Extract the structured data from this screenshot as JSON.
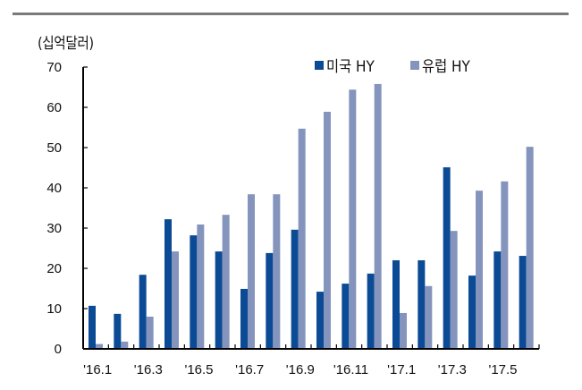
{
  "chart_data": {
    "type": "bar",
    "title": "",
    "unit_label": "(십억달러)",
    "xlabel": "",
    "ylabel": "(십억달러)",
    "ylim": [
      0,
      70
    ],
    "yticks": [
      0,
      10,
      20,
      30,
      40,
      50,
      60,
      70
    ],
    "grid": false,
    "legend_position": "top-right",
    "categories": [
      "'16.1",
      "'16.2",
      "'16.3",
      "'16.4",
      "'16.5",
      "'16.6",
      "'16.7",
      "'16.8",
      "'16.9",
      "'16.10",
      "'16.11",
      "'16.12",
      "'17.1",
      "'17.2",
      "'17.3",
      "'17.4",
      "'17.5",
      "'17.6"
    ],
    "xtick_labels": [
      "'16.1",
      "'16.3",
      "'16.5",
      "'16.7",
      "'16.9",
      "'16.11",
      "'17.1",
      "'17.3",
      "'17.5"
    ],
    "series": [
      {
        "name": "미국 HY",
        "color": "#0b4a94",
        "values": [
          10.7,
          8.7,
          18.4,
          32.2,
          28.2,
          24.2,
          14.9,
          23.8,
          29.6,
          14.2,
          16.2,
          18.7,
          22.0,
          22.0,
          45.1,
          18.2,
          24.2,
          23.1
        ]
      },
      {
        "name": "유럽 HY",
        "color": "#8494bd",
        "values": [
          1.2,
          1.8,
          8.0,
          24.2,
          30.9,
          33.3,
          38.4,
          38.4,
          54.7,
          58.9,
          64.4,
          65.8,
          8.9,
          15.6,
          29.3,
          39.3,
          41.6,
          50.2
        ]
      }
    ]
  },
  "legend": {
    "us_label": "미국 HY",
    "eu_label": "유럽 HY"
  }
}
